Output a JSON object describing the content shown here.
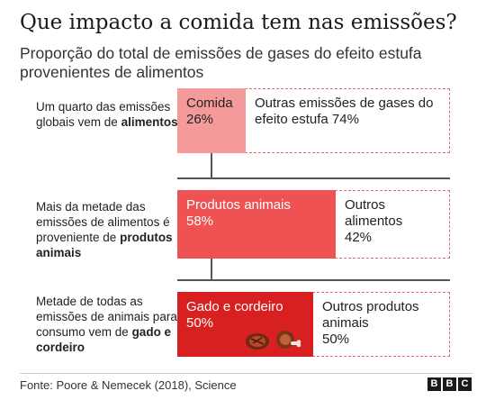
{
  "title": "Que impacto a comida tem nas emissões?",
  "subtitle": "Proporção do total de emissões de gases do efeito estufa provenientes de alimentos",
  "rows": [
    {
      "caption_pre": "Um quarto das emissões globais vem de ",
      "caption_bold": "alimentos",
      "caption_post": "",
      "seg_label": "Comida",
      "seg_value": "26%",
      "other_label": "Outras emissões de gases do efeito estufa 74%"
    },
    {
      "caption_pre": "Mais da metade das emissões de alimentos é proveniente de ",
      "caption_bold": "produtos animais",
      "caption_post": "",
      "seg_label": "Produtos animais",
      "seg_value": "58%",
      "other_label": "Outros alimentos",
      "other_value": "42%"
    },
    {
      "caption_pre": "Metade de todas as emissões de animais para consumo vem de ",
      "caption_bold": "gado e cordeiro",
      "caption_post": "",
      "seg_label": "Gado e cordeiro",
      "seg_value": "50%",
      "other_label": "Outros produtos animais",
      "other_value": "50%"
    }
  ],
  "chart_data": {
    "type": "bar",
    "categories": [
      "Comida",
      "Produtos animais",
      "Gado e cordeiro"
    ],
    "series": [
      {
        "values": [
          26,
          58,
          50
        ]
      },
      {
        "values": [
          74,
          42,
          50
        ]
      }
    ],
    "ylim": [
      0,
      100
    ]
  },
  "icons": [
    "steak-icon",
    "meat-leg-icon"
  ],
  "colors": {
    "level1": "#f59a9a",
    "level2": "#ee5252",
    "level3": "#d92020",
    "dashed": "#e06a6a"
  },
  "source": "Fonte: Poore & Nemecek (2018), Science",
  "logo": [
    "B",
    "B",
    "C"
  ]
}
